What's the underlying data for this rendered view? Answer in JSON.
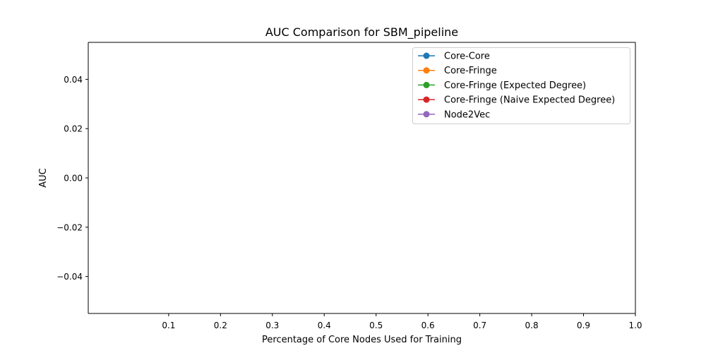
{
  "chart_data": {
    "type": "line",
    "title": "AUC Comparison for SBM_pipeline",
    "xlabel": "Percentage of Core Nodes Used for Training",
    "ylabel": "AUC",
    "xlim": [
      -0.055,
      1.0
    ],
    "ylim": [
      -0.055,
      0.055
    ],
    "x_ticks": [
      0.1,
      0.2,
      0.3,
      0.4,
      0.5,
      0.6,
      0.7,
      0.8,
      0.9,
      1.0
    ],
    "x_tick_labels": [
      "0.1",
      "0.2",
      "0.3",
      "0.4",
      "0.5",
      "0.6",
      "0.7",
      "0.8",
      "0.9",
      "1.0"
    ],
    "y_ticks": [
      0.04,
      0.02,
      0.0,
      -0.02,
      -0.04
    ],
    "y_tick_labels": [
      "0.04",
      "0.02",
      "0.00",
      "−0.02",
      "−0.04"
    ],
    "grid": false,
    "legend_position": "top-right",
    "series": [
      {
        "name": "Core-Core",
        "color": "#1f77b4",
        "marker": "circle",
        "x": [],
        "y": []
      },
      {
        "name": "Core-Fringe",
        "color": "#ff7f0e",
        "marker": "circle",
        "x": [],
        "y": []
      },
      {
        "name": "Core-Fringe (Expected Degree)",
        "color": "#2ca02c",
        "marker": "circle",
        "x": [],
        "y": []
      },
      {
        "name": "Core-Fringe (Naive Expected Degree)",
        "color": "#d62728",
        "marker": "circle",
        "x": [],
        "y": []
      },
      {
        "name": "Node2Vec",
        "color": "#9467bd",
        "marker": "circle",
        "x": [],
        "y": []
      }
    ]
  }
}
